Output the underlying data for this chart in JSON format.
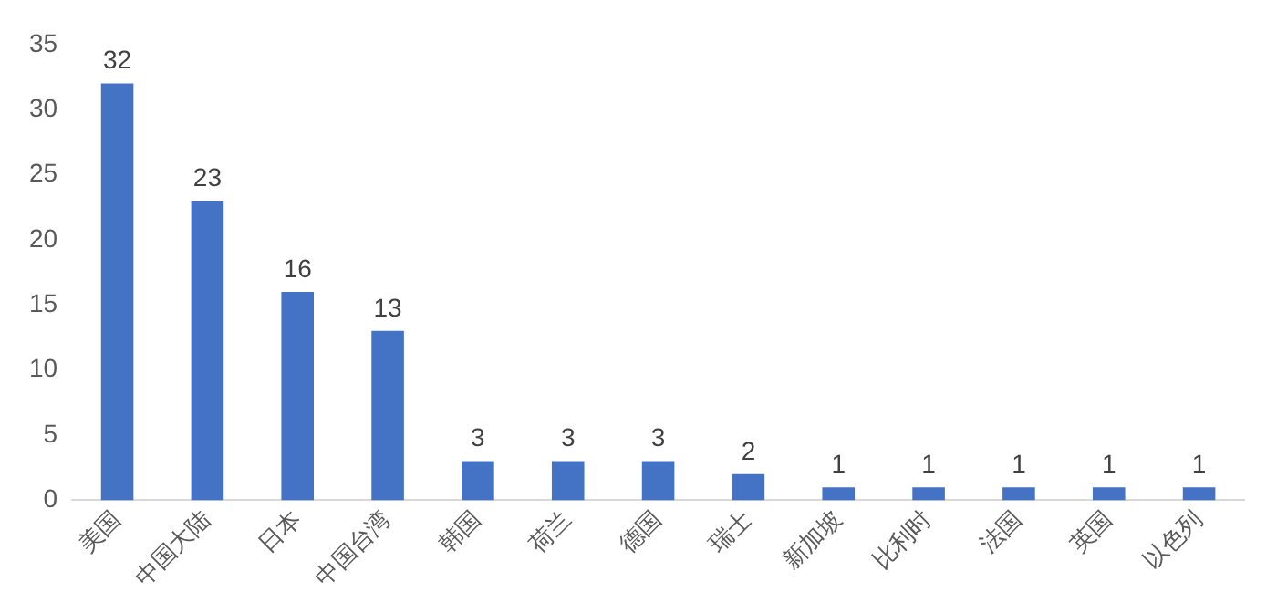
{
  "chart_data": {
    "type": "bar",
    "categories": [
      "美国",
      "中国大陆",
      "日本",
      "中国台湾",
      "韩国",
      "荷兰",
      "德国",
      "瑞士",
      "新加坡",
      "比利时",
      "法国",
      "英国",
      "以色列"
    ],
    "values": [
      32,
      23,
      16,
      13,
      3,
      3,
      3,
      2,
      1,
      1,
      1,
      1,
      1
    ],
    "color": "#4472c4",
    "ylim": [
      0,
      35
    ],
    "yticks": [
      0,
      5,
      10,
      15,
      20,
      25,
      30,
      35
    ],
    "grid": false,
    "data_labels": true,
    "legend": false
  }
}
